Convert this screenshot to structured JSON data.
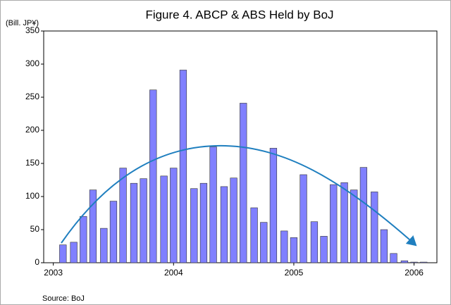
{
  "chart_data": {
    "type": "bar",
    "title": "Figure 4. ABCP & ABS Held by BoJ",
    "y_label": "(Bill. JP¥)",
    "source": "Source: BoJ",
    "x": [
      2003.08,
      2003.17,
      2003.25,
      2003.33,
      2003.42,
      2003.5,
      2003.58,
      2003.67,
      2003.75,
      2003.83,
      2003.92,
      2004.0,
      2004.08,
      2004.17,
      2004.25,
      2004.33,
      2004.42,
      2004.5,
      2004.58,
      2004.67,
      2004.75,
      2004.83,
      2004.92,
      2005.0,
      2005.08,
      2005.17,
      2005.25,
      2005.33,
      2005.42,
      2005.5,
      2005.58,
      2005.67,
      2005.75,
      2005.83,
      2005.92,
      2006.0,
      2006.08
    ],
    "values": [
      27,
      31,
      70,
      110,
      52,
      93,
      143,
      120,
      127,
      261,
      131,
      143,
      291,
      112,
      120,
      175,
      115,
      128,
      241,
      83,
      61,
      173,
      48,
      38,
      133,
      62,
      40,
      118,
      121,
      110,
      144,
      107,
      50,
      14,
      3,
      1,
      1
    ],
    "color": "#8080ff",
    "xlim": [
      2002.92,
      2006.19
    ],
    "xticks": [
      2003,
      2004,
      2005,
      2006
    ],
    "ylim": [
      0,
      350
    ],
    "yticks": [
      0,
      50,
      100,
      150,
      200,
      250,
      300,
      350
    ]
  }
}
